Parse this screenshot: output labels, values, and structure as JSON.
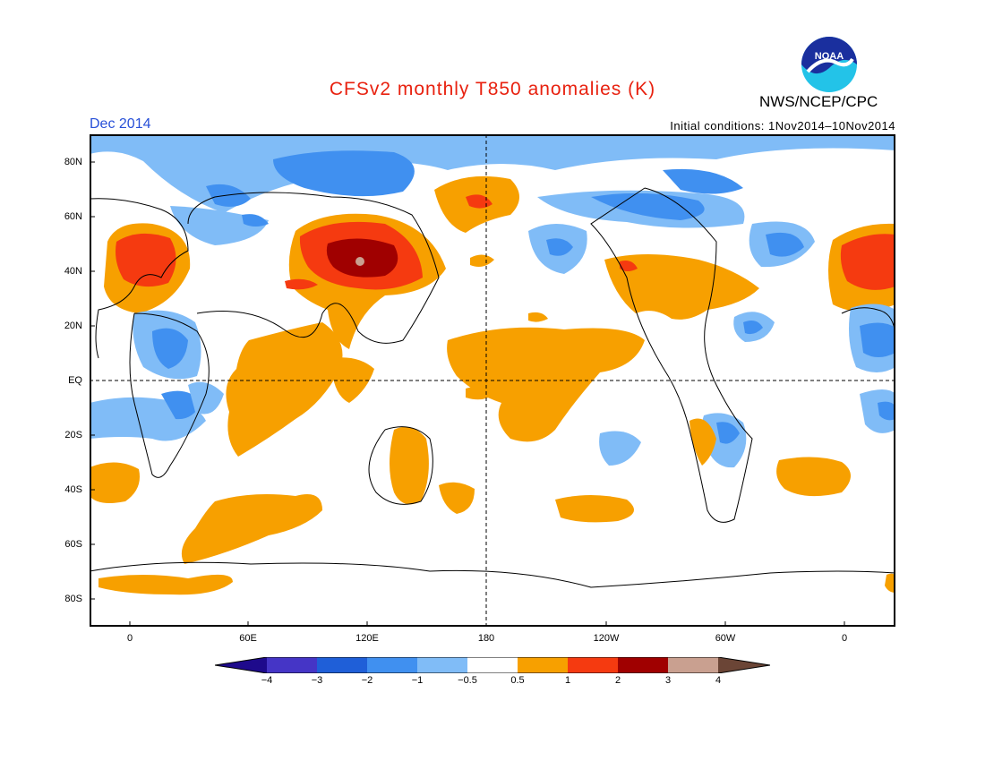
{
  "header": {
    "title": "CFSv2 monthly T850 anomalies (K)",
    "agency": "NWS/NCEP/CPC",
    "forecast_month": "Dec 2014",
    "initial_conditions": "Initial conditions: 1Nov2014–10Nov2014",
    "logo_text": "NOAA"
  },
  "axes": {
    "lat_labels": [
      "80N",
      "60N",
      "40N",
      "20N",
      "EQ",
      "20S",
      "40S",
      "60S",
      "80S"
    ],
    "lon_labels": [
      "0",
      "60E",
      "120E",
      "180",
      "120W",
      "60W",
      "0"
    ]
  },
  "colorbar": {
    "labels": [
      "−4",
      "−3",
      "−2",
      "−1",
      "−0.5",
      "0.5",
      "1",
      "2",
      "3",
      "4"
    ],
    "colors": [
      "#1e0a8c",
      "#4535c6",
      "#1f5fd8",
      "#4090f0",
      "#80bcf7",
      "#ffffff",
      "#f7a000",
      "#f53a10",
      "#a00000",
      "#c9a090",
      "#6b4536"
    ]
  },
  "colors": {
    "ocean_land_bg": "#ffffff",
    "positive_weak": "#f7a000",
    "positive_mid": "#f53a10",
    "positive_strong": "#a00000",
    "positive_extreme": "#c9a090",
    "negative_weak": "#80bcf7",
    "negative_mid": "#4090f0",
    "negative_strong": "#1f5fd8"
  }
}
